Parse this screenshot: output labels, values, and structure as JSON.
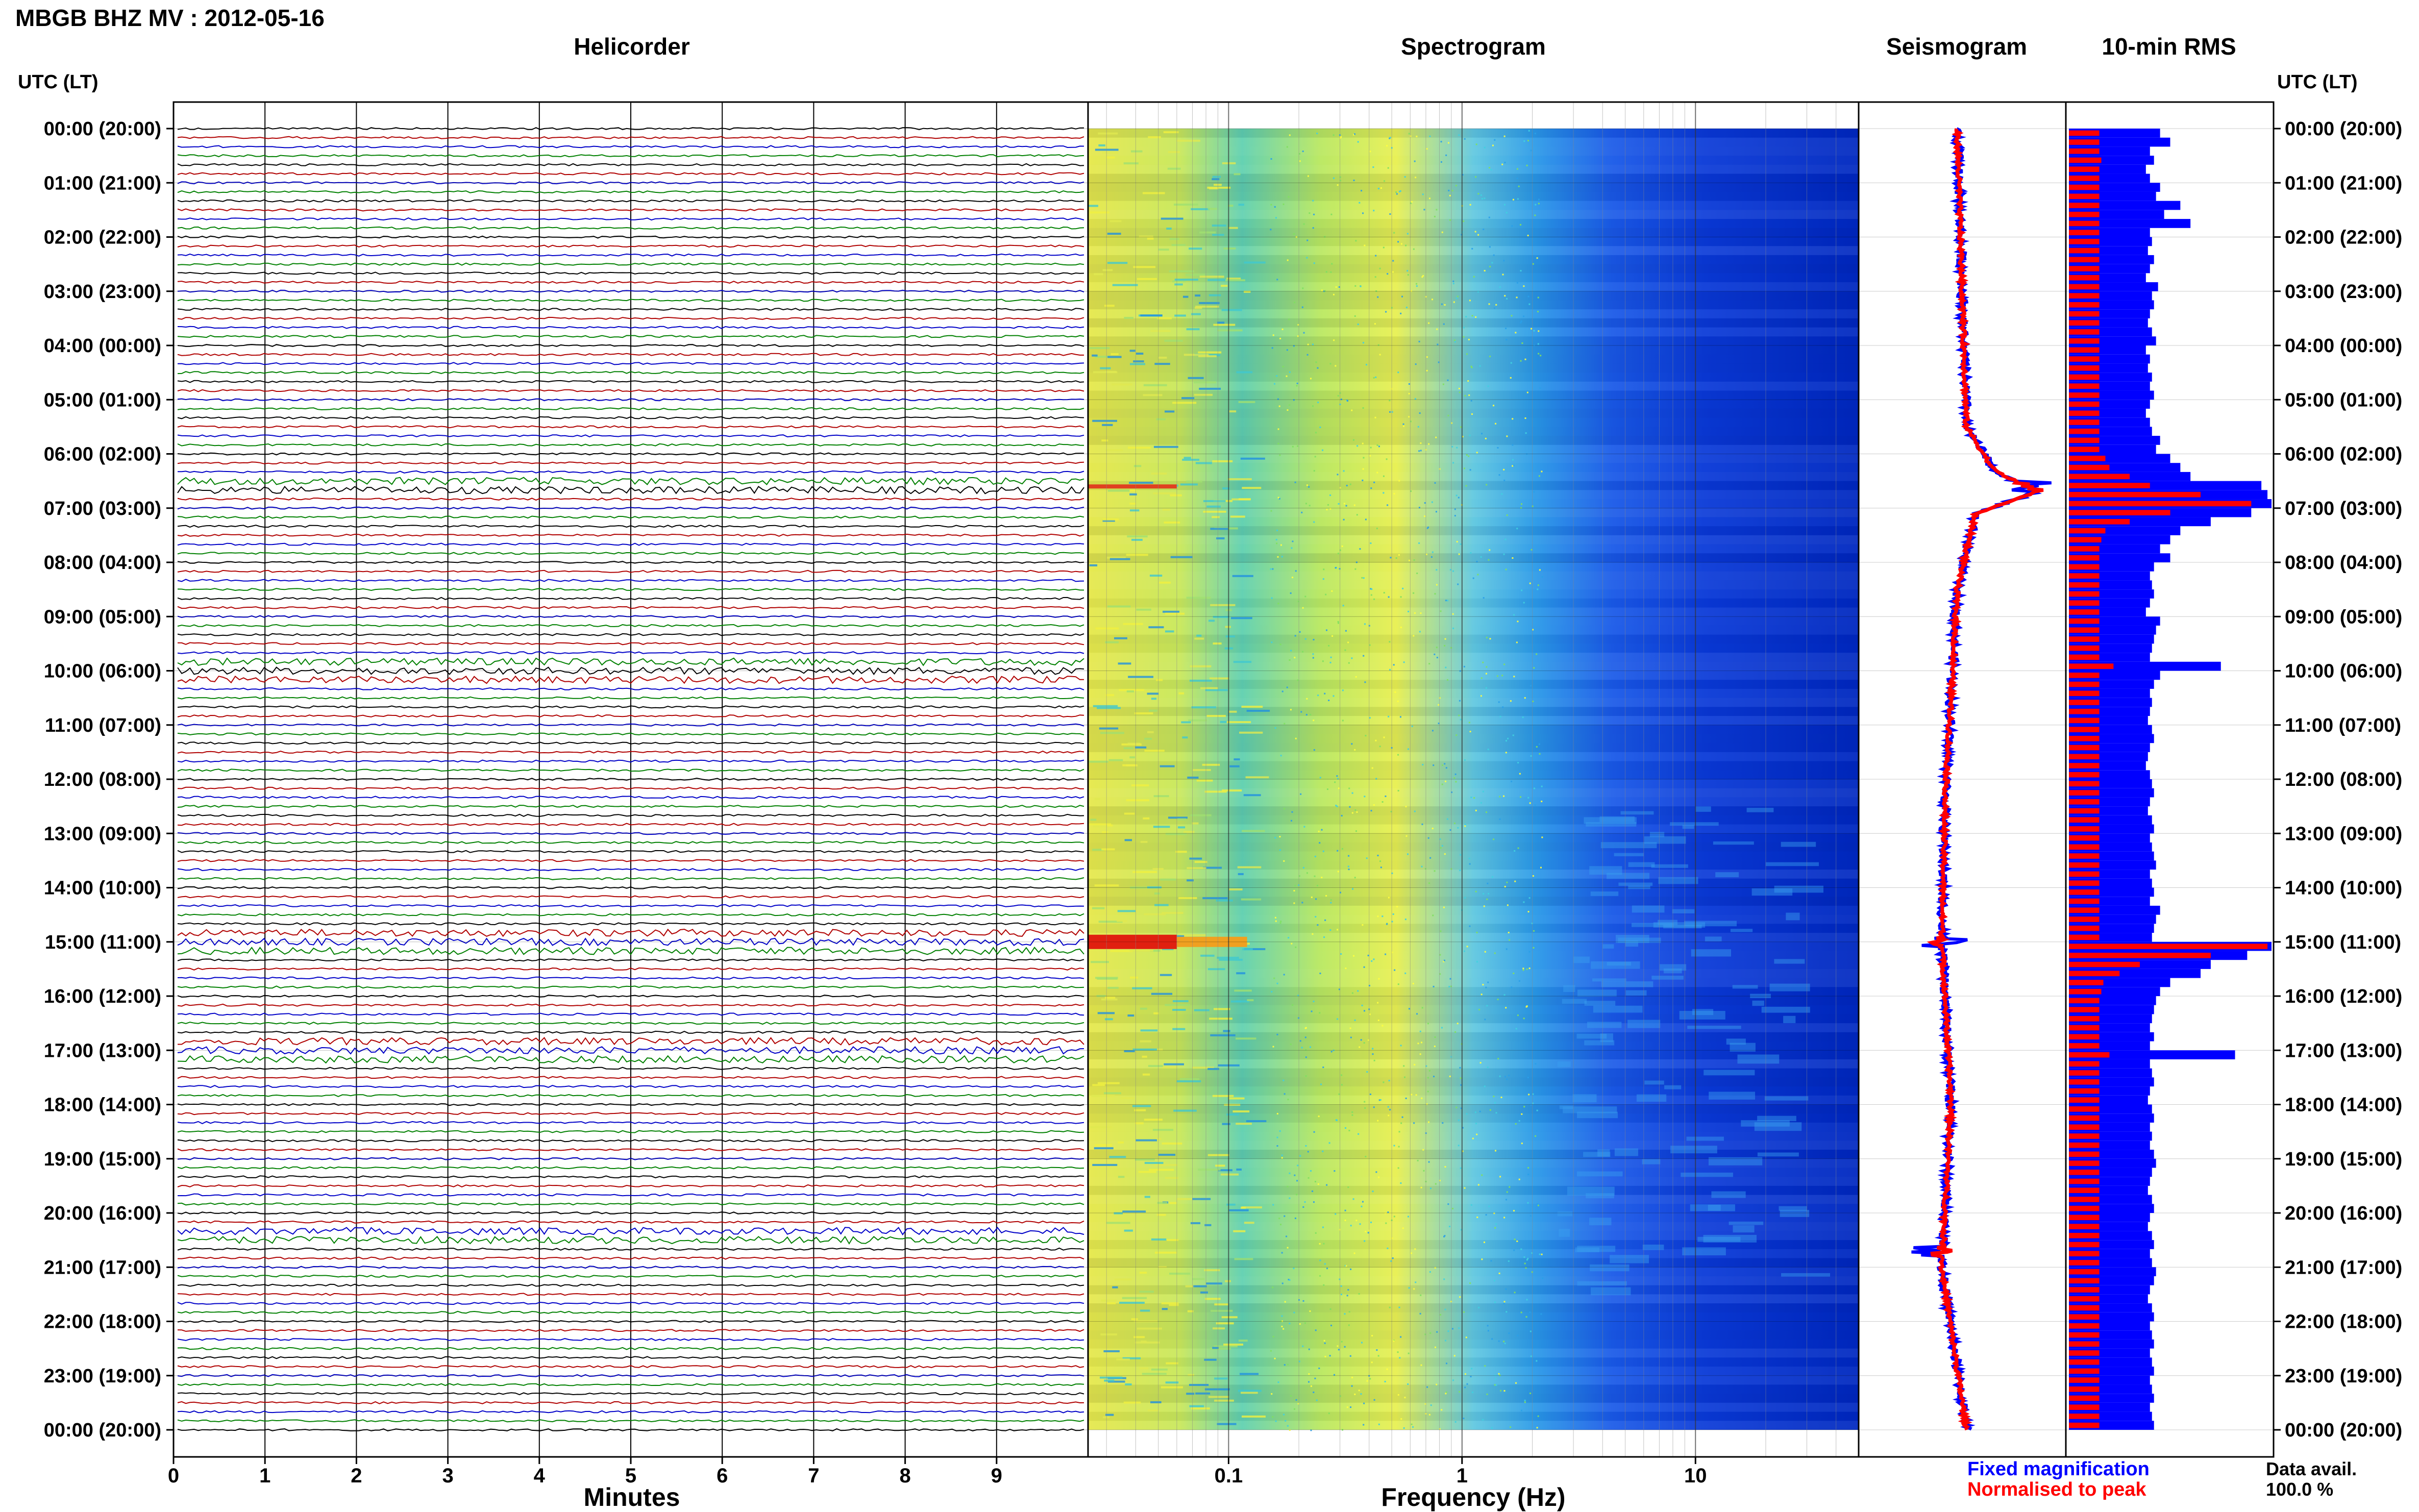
{
  "header": {
    "title": "MBGB BHZ MV : 2012-05-16",
    "utc_label_left": "UTC (LT)",
    "utc_label_right": "UTC (LT)"
  },
  "panels": {
    "helicorder": "Helicorder",
    "spectrogram": "Spectrogram",
    "seismogram": "Seismogram",
    "rms": "10-min RMS"
  },
  "axes": {
    "minutes_label": "Minutes",
    "frequency_label": "Frequency (Hz)"
  },
  "legend": {
    "fixed": "Fixed magnification",
    "normalised": "Normalised to peak",
    "fixed_color": "#0000ff",
    "normalised_color": "#ff0000"
  },
  "availability": {
    "label": "Data avail.",
    "value": "100.0 %"
  },
  "chart_data": [
    {
      "type": "line",
      "name": "helicorder",
      "title": "Helicorder",
      "xlabel": "Minutes",
      "x_ticks": [
        "0",
        "1",
        "2",
        "3",
        "4",
        "5",
        "6",
        "7",
        "8",
        "9"
      ],
      "xlim": [
        0,
        10
      ],
      "time_labels": [
        "00:00 (20:00)",
        "01:00 (21:00)",
        "02:00 (22:00)",
        "03:00 (23:00)",
        "04:00 (00:00)",
        "05:00 (01:00)",
        "06:00 (02:00)",
        "07:00 (03:00)",
        "08:00 (04:00)",
        "09:00 (05:00)",
        "10:00 (06:00)",
        "11:00 (07:00)",
        "12:00 (08:00)",
        "13:00 (09:00)",
        "14:00 (10:00)",
        "15:00 (11:00)",
        "16:00 (12:00)",
        "17:00 (13:00)",
        "18:00 (14:00)",
        "19:00 (15:00)",
        "20:00 (16:00)",
        "21:00 (17:00)",
        "22:00 (18:00)",
        "23:00 (19:00)",
        "00:00 (20:00)"
      ],
      "traces_per_hour": 6,
      "trace_colors": [
        "#000000",
        "#b00000",
        "#0000c8",
        "#008000"
      ],
      "events_hour": [
        6.6,
        10.0,
        15.0,
        15.1,
        17.0,
        20.4
      ]
    },
    {
      "type": "heatmap",
      "name": "spectrogram",
      "title": "Spectrogram",
      "xlabel": "Frequency (Hz)",
      "x_scale": "log",
      "xlim": [
        0.025,
        50
      ],
      "x_ticks": [
        "0.1",
        "1",
        "10"
      ],
      "color_low": "#00008b",
      "color_high": "#ffff00",
      "event_band_hour": 15.0
    },
    {
      "type": "line",
      "name": "seismogram",
      "title": "Seismogram",
      "series": [
        {
          "name": "Fixed magnification",
          "color": "#0000ff"
        },
        {
          "name": "Normalised to peak",
          "color": "#ff0000"
        }
      ],
      "peak_hours": [
        6.6,
        15.0,
        20.7
      ],
      "offset_profile": [
        {
          "h": 0.0,
          "v": 0.0
        },
        {
          "h": 5.5,
          "v": 0.3
        },
        {
          "h": 6.3,
          "v": 1.2
        },
        {
          "h": 6.7,
          "v": 2.6
        },
        {
          "h": 7.1,
          "v": 0.6
        },
        {
          "h": 8.5,
          "v": 0.0
        },
        {
          "h": 12.5,
          "v": -0.4
        },
        {
          "h": 15.0,
          "v": -0.5
        },
        {
          "h": 18.0,
          "v": -0.2
        },
        {
          "h": 21.0,
          "v": -0.5
        },
        {
          "h": 24.0,
          "v": 0.3
        }
      ]
    },
    {
      "type": "bar",
      "name": "rms",
      "title": "10-min RMS",
      "series": [
        {
          "name": "Fixed magnification",
          "color": "#0000ff",
          "values": [
            0.45,
            0.5,
            0.4,
            0.42,
            0.38,
            0.4,
            0.45,
            0.43,
            0.55,
            0.47,
            0.6,
            0.4,
            0.41,
            0.39,
            0.42,
            0.4,
            0.38,
            0.44,
            0.41,
            0.42,
            0.4,
            0.39,
            0.41,
            0.43,
            0.38,
            0.4,
            0.39,
            0.41,
            0.4,
            0.42,
            0.4,
            0.38,
            0.4,
            0.41,
            0.45,
            0.43,
            0.5,
            0.55,
            0.6,
            0.95,
            0.98,
            1.0,
            0.9,
            0.7,
            0.55,
            0.5,
            0.45,
            0.5,
            0.42,
            0.4,
            0.41,
            0.42,
            0.4,
            0.38,
            0.45,
            0.43,
            0.42,
            0.41,
            0.4,
            0.75,
            0.45,
            0.42,
            0.4,
            0.41,
            0.4,
            0.39,
            0.41,
            0.42,
            0.4,
            0.39,
            0.38,
            0.4,
            0.41,
            0.42,
            0.4,
            0.39,
            0.41,
            0.42,
            0.4,
            0.41,
            0.42,
            0.43,
            0.4,
            0.41,
            0.42,
            0.4,
            0.45,
            0.43,
            0.42,
            0.41,
            1.0,
            0.88,
            0.7,
            0.65,
            0.5,
            0.45,
            0.43,
            0.42,
            0.41,
            0.4,
            0.42,
            0.4,
            0.82,
            0.4,
            0.41,
            0.42,
            0.4,
            0.39,
            0.41,
            0.42,
            0.4,
            0.41,
            0.4,
            0.42,
            0.43,
            0.41,
            0.4,
            0.39,
            0.41,
            0.42,
            0.4,
            0.39,
            0.41,
            0.42,
            0.4,
            0.41,
            0.43,
            0.42,
            0.4,
            0.39,
            0.41,
            0.42,
            0.4,
            0.41,
            0.42,
            0.4,
            0.41,
            0.42,
            0.4,
            0.41,
            0.42,
            0.4,
            0.41,
            0.42
          ]
        },
        {
          "name": "Normalised to peak",
          "color": "#ff0000",
          "values": [
            0.15,
            0.15,
            0.15,
            0.16,
            0.15,
            0.15,
            0.15,
            0.15,
            0.15,
            0.15,
            0.15,
            0.15,
            0.15,
            0.15,
            0.15,
            0.15,
            0.15,
            0.15,
            0.15,
            0.15,
            0.15,
            0.15,
            0.15,
            0.15,
            0.15,
            0.15,
            0.15,
            0.15,
            0.15,
            0.15,
            0.15,
            0.15,
            0.15,
            0.15,
            0.15,
            0.15,
            0.18,
            0.2,
            0.3,
            0.4,
            0.65,
            0.9,
            0.5,
            0.3,
            0.18,
            0.16,
            0.15,
            0.15,
            0.15,
            0.15,
            0.15,
            0.15,
            0.15,
            0.15,
            0.15,
            0.15,
            0.15,
            0.15,
            0.15,
            0.22,
            0.15,
            0.15,
            0.15,
            0.15,
            0.15,
            0.15,
            0.15,
            0.15,
            0.15,
            0.15,
            0.15,
            0.15,
            0.15,
            0.15,
            0.15,
            0.15,
            0.15,
            0.15,
            0.15,
            0.15,
            0.15,
            0.15,
            0.15,
            0.15,
            0.15,
            0.15,
            0.15,
            0.15,
            0.15,
            0.15,
            0.98,
            0.7,
            0.35,
            0.25,
            0.17,
            0.16,
            0.15,
            0.15,
            0.15,
            0.15,
            0.15,
            0.15,
            0.2,
            0.15,
            0.15,
            0.15,
            0.15,
            0.15,
            0.15,
            0.15,
            0.15,
            0.15,
            0.15,
            0.15,
            0.15,
            0.15,
            0.15,
            0.15,
            0.15,
            0.15,
            0.15,
            0.15,
            0.15,
            0.15,
            0.15,
            0.15,
            0.15,
            0.15,
            0.15,
            0.15,
            0.15,
            0.15,
            0.15,
            0.15,
            0.15,
            0.15,
            0.15,
            0.15,
            0.15,
            0.15,
            0.15,
            0.15,
            0.15,
            0.15
          ]
        }
      ]
    }
  ]
}
